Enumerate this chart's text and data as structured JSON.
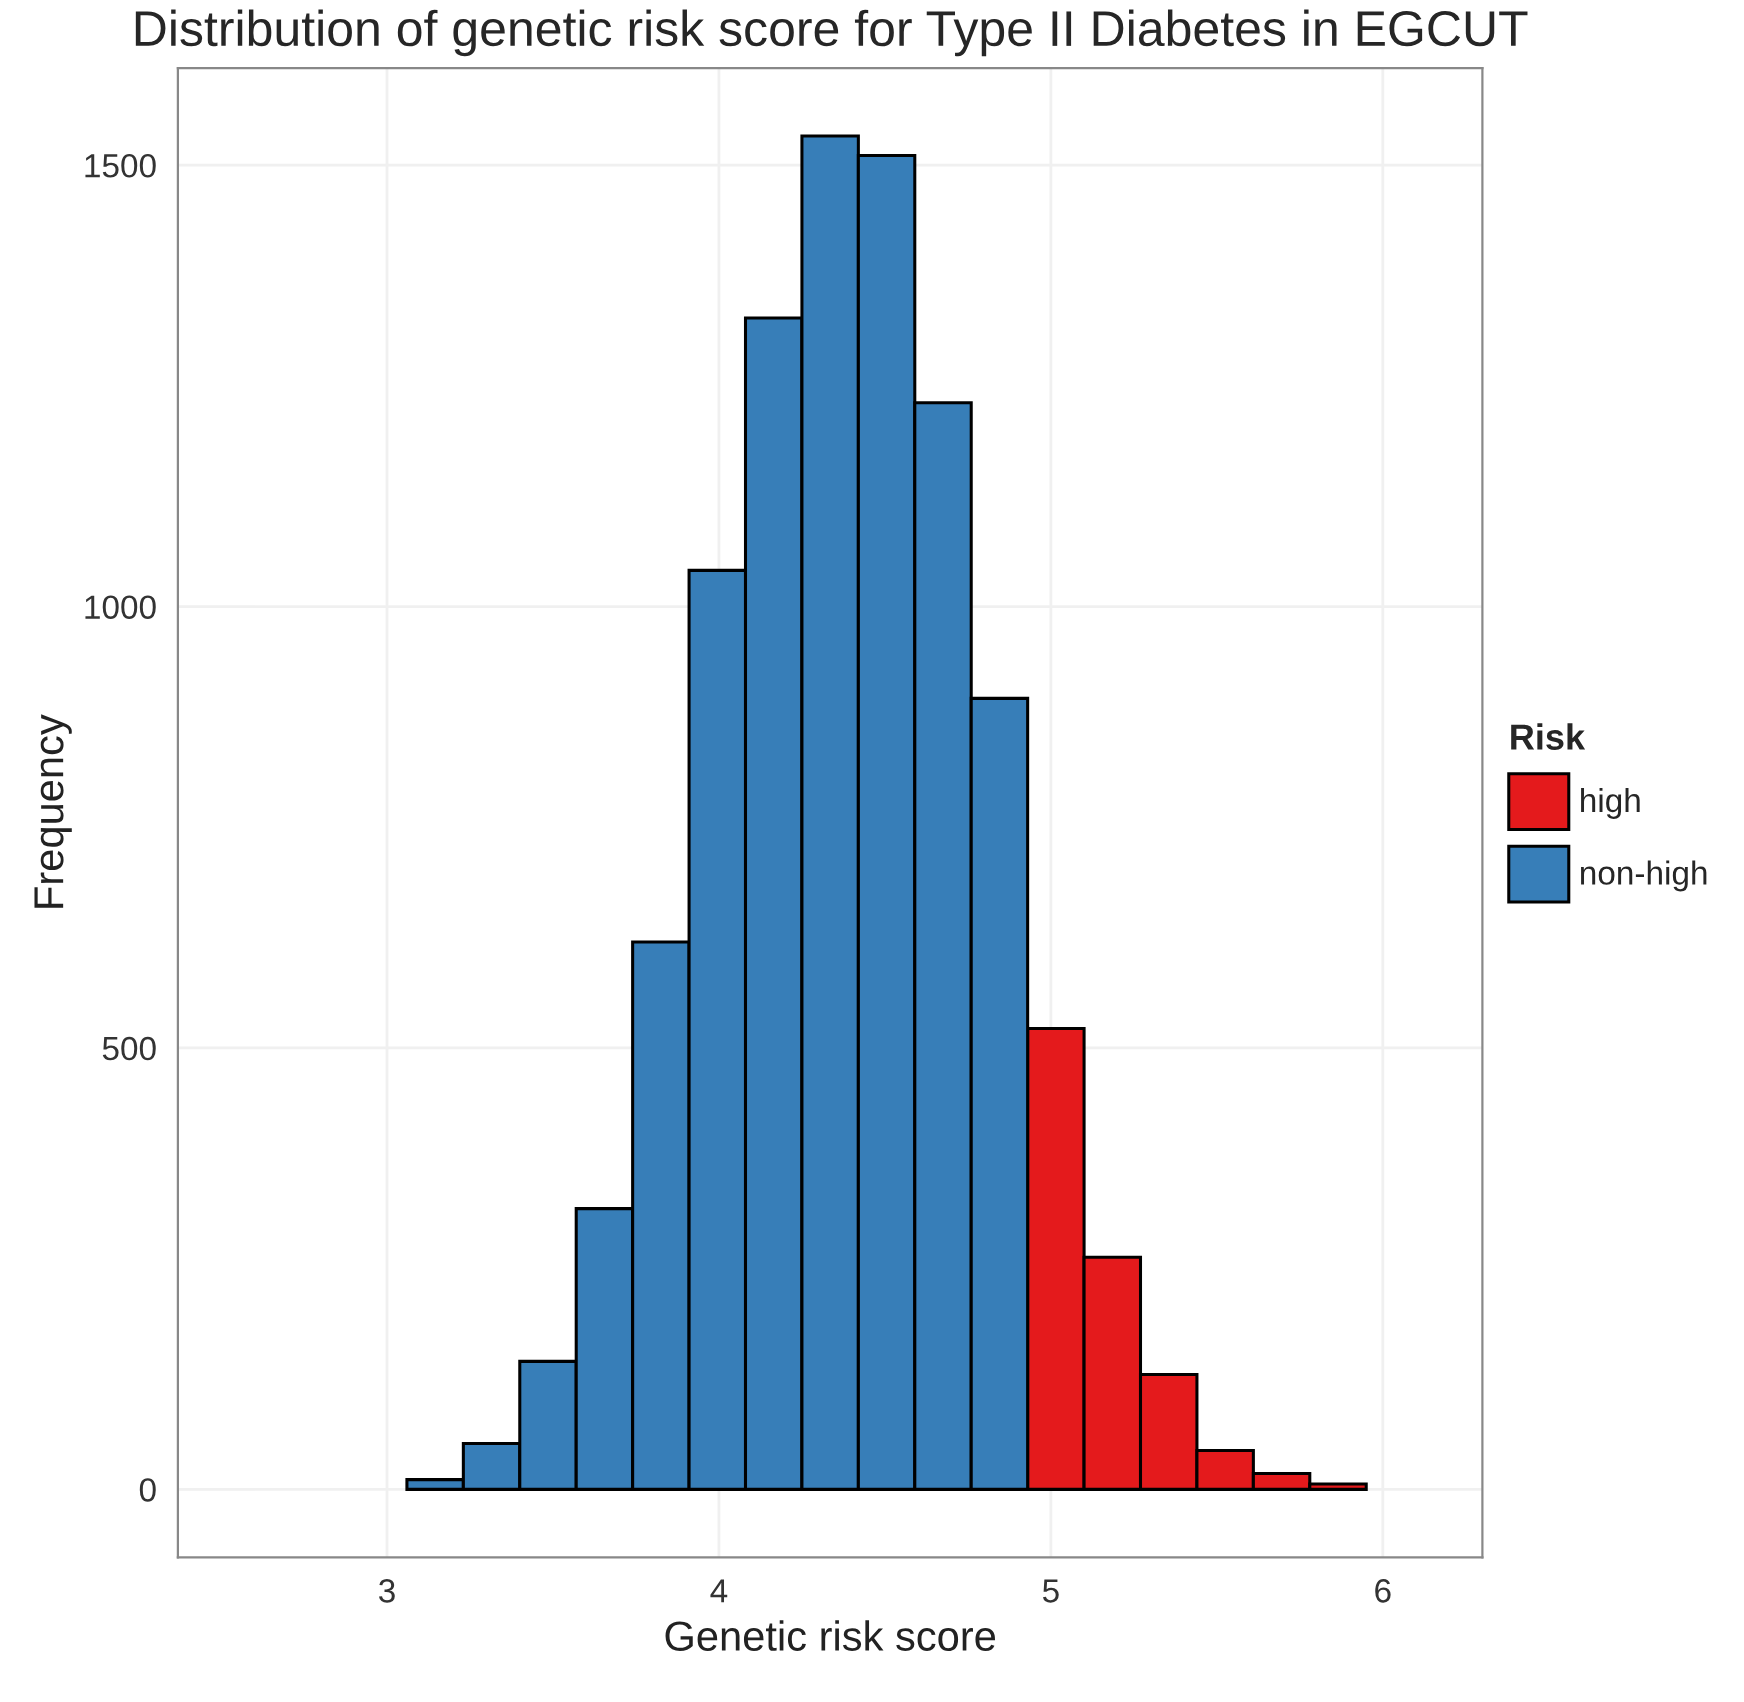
{
  "chart_data": {
    "type": "histogram",
    "title": "Distribution of genetic risk score for Type II Diabetes in EGCUT",
    "xlabel": "Genetic risk score",
    "ylabel": "Frequency",
    "legend_title": "Risk",
    "bins": [
      2.55,
      2.72,
      2.89,
      3.06,
      3.23,
      3.4,
      3.57,
      3.74,
      3.91,
      4.08,
      4.25,
      4.42,
      4.59,
      4.76,
      4.93,
      5.1,
      5.27,
      5.44,
      5.61,
      5.78,
      5.95,
      6.12
    ],
    "series": [
      {
        "name": "high",
        "color": "#e41a1c",
        "values": [
          null,
          null,
          null,
          null,
          null,
          null,
          null,
          null,
          null,
          null,
          null,
          null,
          null,
          null,
          522,
          263,
          130,
          44,
          18,
          6,
          null
        ]
      },
      {
        "name": "non-high",
        "color": "#377eb8",
        "values": [
          null,
          null,
          null,
          11,
          52,
          145,
          318,
          620,
          1041,
          1327,
          1533,
          1511,
          1231,
          896,
          null,
          null,
          null,
          null,
          null,
          null,
          null
        ]
      }
    ],
    "xlim": [
      2.37,
      6.3
    ],
    "ylim": [
      -77,
      1610
    ],
    "xticks": [
      3,
      4,
      5,
      6
    ],
    "yticks": [
      0,
      500,
      1000,
      1500
    ],
    "grid": true,
    "legend": "right"
  }
}
